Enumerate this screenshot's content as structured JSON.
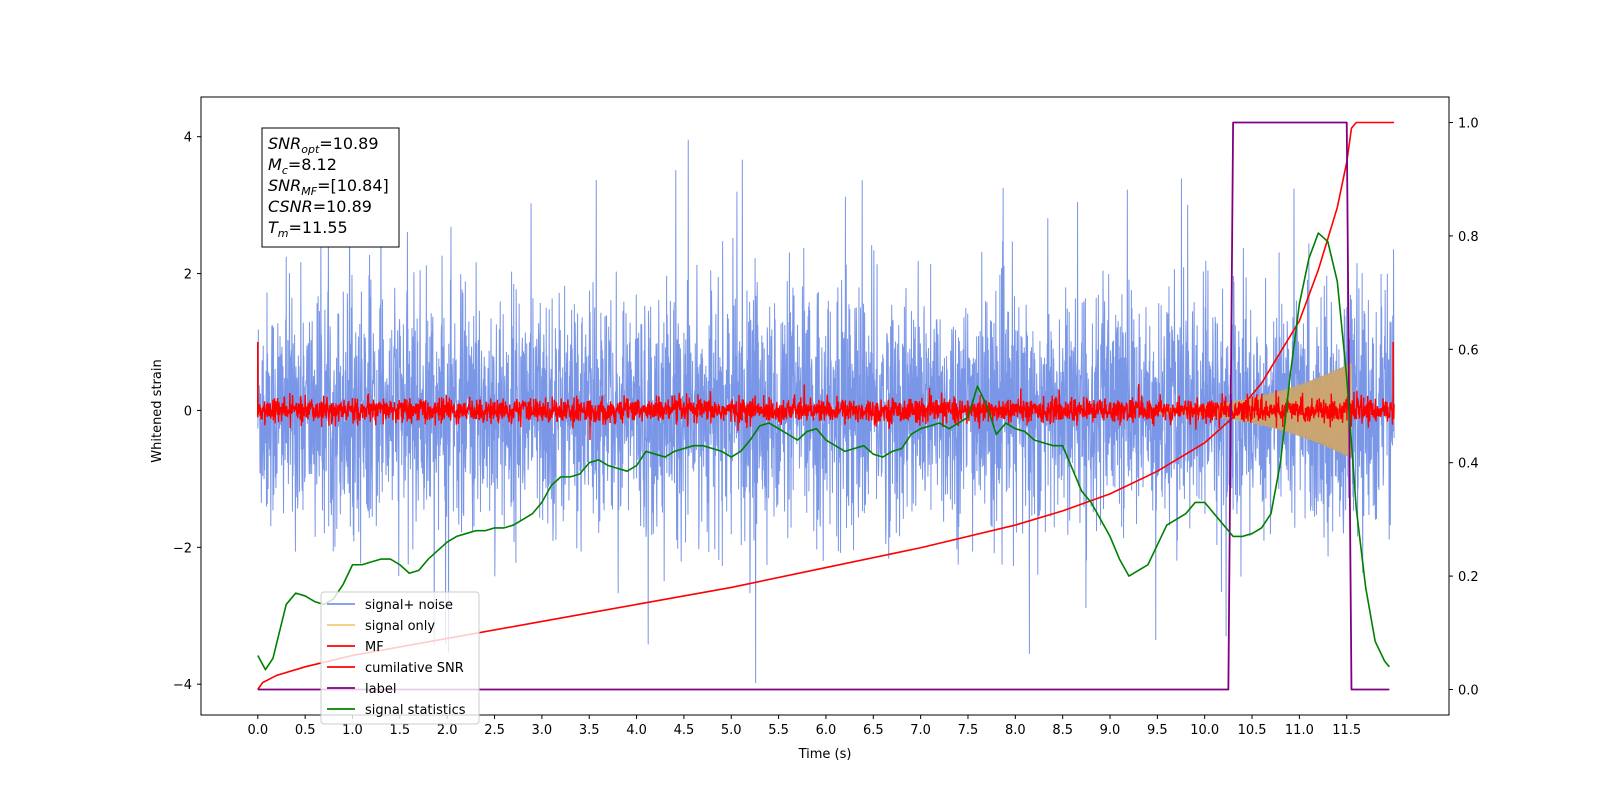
{
  "chart_data": {
    "type": "line",
    "xlabel": "Time (s)",
    "ylabel": "Whitened strain",
    "xlim": [
      -0.6,
      12.58
    ],
    "ylim": [
      -4.45,
      4.58
    ],
    "y2lim": [
      -0.045,
      1.045
    ],
    "xticks": [
      "0.0",
      "0.5",
      "1.0",
      "1.5",
      "2.0",
      "2.5",
      "3.0",
      "3.5",
      "4.0",
      "4.5",
      "5.0",
      "5.5",
      "6.0",
      "6.5",
      "7.0",
      "7.5",
      "8.0",
      "8.5",
      "9.0",
      "9.5",
      "10.0",
      "10.5",
      "11.0",
      "11.5"
    ],
    "yticks": [
      "4",
      "2",
      "0",
      "−2",
      "−4"
    ],
    "y2ticks": [
      "1.0",
      "0.8",
      "0.6",
      "0.4",
      "0.2",
      "0.0"
    ],
    "legend_position": "lower-left",
    "annotation": {
      "lines": [
        {
          "base": "SNR",
          "sub": "opt",
          "value": "=10.89"
        },
        {
          "base": "M",
          "sub": "c",
          "value": "=8.12"
        },
        {
          "base": "SNR",
          "sub": "MF",
          "value": "=[10.84]"
        },
        {
          "base": "CSNR",
          "sub": "",
          "value": "=10.89"
        },
        {
          "base": "T",
          "sub": "m",
          "value": "=11.55"
        }
      ]
    },
    "series": [
      {
        "name": "signal+ noise",
        "color": "#7390e6",
        "axis": "left",
        "kind": "noise",
        "amplitude": 0.85,
        "x_range": [
          0.0,
          12.0
        ]
      },
      {
        "name": "signal only",
        "color": "#f5c87a",
        "axis": "left",
        "kind": "chirp",
        "peak_amplitude": 0.65,
        "x_range": [
          9.5,
          11.55
        ]
      },
      {
        "name": "MF",
        "color": "#ff0000",
        "axis": "left",
        "kind": "noise",
        "amplitude": 0.09,
        "x_range": [
          0.0,
          12.0
        ]
      },
      {
        "name": "cumilative SNR",
        "color": "#ff0000",
        "axis": "right",
        "x": [
          0.0,
          0.05,
          0.2,
          0.5,
          1.0,
          2.0,
          3.0,
          4.0,
          5.0,
          6.0,
          7.0,
          8.0,
          8.5,
          9.0,
          9.5,
          10.0,
          10.3,
          10.6,
          11.0,
          11.2,
          11.4,
          11.5,
          11.55,
          11.6,
          12.0
        ],
        "y": [
          0.0,
          0.012,
          0.025,
          0.04,
          0.06,
          0.09,
          0.12,
          0.15,
          0.18,
          0.215,
          0.25,
          0.29,
          0.315,
          0.345,
          0.385,
          0.435,
          0.48,
          0.54,
          0.65,
          0.74,
          0.85,
          0.93,
          0.99,
          1.0,
          1.0
        ]
      },
      {
        "name": "label",
        "color": "#800080",
        "axis": "right",
        "x": [
          0.0,
          10.25,
          10.3,
          11.5,
          11.55,
          11.95
        ],
        "y": [
          0.0,
          0.0,
          1.0,
          1.0,
          0.0,
          0.0
        ]
      },
      {
        "name": "signal statistics",
        "color": "#008000",
        "axis": "right",
        "x": [
          0.0,
          0.08,
          0.16,
          0.3,
          0.4,
          0.5,
          0.6,
          0.7,
          0.8,
          0.9,
          1.0,
          1.1,
          1.2,
          1.3,
          1.4,
          1.5,
          1.6,
          1.7,
          1.8,
          1.9,
          2.0,
          2.1,
          2.2,
          2.3,
          2.4,
          2.5,
          2.6,
          2.7,
          2.8,
          2.9,
          3.0,
          3.1,
          3.2,
          3.3,
          3.4,
          3.5,
          3.6,
          3.7,
          3.8,
          3.9,
          4.0,
          4.1,
          4.2,
          4.3,
          4.4,
          4.5,
          4.6,
          4.7,
          4.8,
          4.9,
          5.0,
          5.1,
          5.2,
          5.3,
          5.4,
          5.5,
          5.6,
          5.7,
          5.8,
          5.9,
          6.0,
          6.1,
          6.2,
          6.3,
          6.4,
          6.5,
          6.6,
          6.7,
          6.8,
          6.9,
          7.0,
          7.1,
          7.2,
          7.3,
          7.4,
          7.5,
          7.6,
          7.7,
          7.8,
          7.9,
          8.0,
          8.1,
          8.2,
          8.3,
          8.4,
          8.5,
          8.6,
          8.7,
          8.8,
          8.9,
          9.0,
          9.1,
          9.2,
          9.3,
          9.4,
          9.5,
          9.6,
          9.7,
          9.8,
          9.9,
          10.0,
          10.1,
          10.2,
          10.3,
          10.4,
          10.5,
          10.6,
          10.7,
          10.8,
          10.9,
          11.0,
          11.1,
          11.2,
          11.3,
          11.4,
          11.5,
          11.6,
          11.7,
          11.8,
          11.9,
          11.95
        ],
        "y": [
          0.06,
          0.035,
          0.055,
          0.15,
          0.17,
          0.165,
          0.155,
          0.15,
          0.16,
          0.185,
          0.22,
          0.22,
          0.225,
          0.23,
          0.23,
          0.22,
          0.205,
          0.21,
          0.23,
          0.245,
          0.26,
          0.27,
          0.275,
          0.28,
          0.28,
          0.285,
          0.285,
          0.29,
          0.3,
          0.31,
          0.33,
          0.36,
          0.375,
          0.375,
          0.38,
          0.4,
          0.405,
          0.395,
          0.39,
          0.385,
          0.395,
          0.42,
          0.415,
          0.41,
          0.42,
          0.425,
          0.43,
          0.43,
          0.425,
          0.42,
          0.41,
          0.42,
          0.44,
          0.465,
          0.47,
          0.46,
          0.45,
          0.44,
          0.455,
          0.46,
          0.44,
          0.43,
          0.42,
          0.425,
          0.43,
          0.415,
          0.41,
          0.42,
          0.425,
          0.45,
          0.46,
          0.465,
          0.47,
          0.46,
          0.47,
          0.48,
          0.535,
          0.5,
          0.45,
          0.47,
          0.46,
          0.455,
          0.44,
          0.435,
          0.43,
          0.43,
          0.39,
          0.35,
          0.33,
          0.3,
          0.27,
          0.23,
          0.2,
          0.21,
          0.22,
          0.255,
          0.29,
          0.3,
          0.31,
          0.33,
          0.33,
          0.31,
          0.29,
          0.27,
          0.27,
          0.275,
          0.285,
          0.31,
          0.4,
          0.55,
          0.68,
          0.76,
          0.805,
          0.79,
          0.72,
          0.55,
          0.32,
          0.18,
          0.085,
          0.05,
          0.04
        ]
      }
    ]
  }
}
